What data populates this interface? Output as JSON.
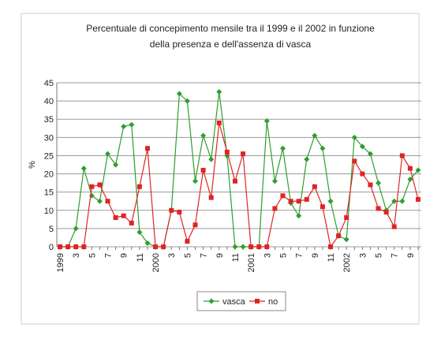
{
  "chart_data": {
    "type": "line",
    "title": [
      "Percentuale  di concepimento mensile tra il 1999 e il 2002 in funzione",
      "della presenza e dell'assenza di vasca"
    ],
    "y_label": "%",
    "categories": [
      "1999",
      null,
      "3",
      null,
      "5",
      null,
      "7",
      null,
      "9",
      null,
      "11",
      null,
      "2000",
      null,
      "3",
      null,
      "5",
      null,
      "7",
      null,
      "9",
      null,
      "11",
      null,
      "2001",
      null,
      "3",
      null,
      "5",
      null,
      "7",
      null,
      "9",
      null,
      "11",
      null,
      "2002",
      null,
      "3",
      null,
      "5",
      null,
      "7",
      null,
      "9",
      null
    ],
    "series": [
      {
        "name": "vasca",
        "color": "#2f9e2f",
        "marker": "diamond",
        "values": [
          0,
          0,
          5,
          21.5,
          14,
          12.5,
          25.5,
          22.5,
          33,
          33.5,
          4,
          1,
          0,
          0,
          10,
          42,
          40,
          18,
          30.5,
          24,
          42.5,
          25,
          0,
          0,
          0,
          0,
          34.5,
          18,
          27,
          12,
          8.5,
          24,
          30.5,
          27,
          12.5,
          3,
          2,
          30,
          27.5,
          25.5,
          17.5,
          10,
          12.5,
          12.5,
          18.5,
          21
        ]
      },
      {
        "name": "no",
        "color": "#e02424",
        "marker": "square",
        "values": [
          0,
          0,
          0,
          0,
          16.5,
          17,
          12.5,
          8,
          8.5,
          6.5,
          16.5,
          27,
          0,
          0,
          10,
          9.5,
          1.5,
          6,
          21,
          13.5,
          34,
          26,
          18,
          25.5,
          0,
          0,
          0,
          10.5,
          14,
          12.5,
          12.5,
          13,
          16.5,
          11,
          0,
          3,
          8,
          23.5,
          20,
          17,
          10.5,
          9.5,
          5.5,
          25,
          21.5,
          13
        ]
      }
    ],
    "ylim": [
      0,
      45
    ],
    "yticks": [
      0,
      5,
      10,
      15,
      20,
      25,
      30,
      35,
      40,
      45
    ],
    "grid": true,
    "legend": "bottom"
  }
}
